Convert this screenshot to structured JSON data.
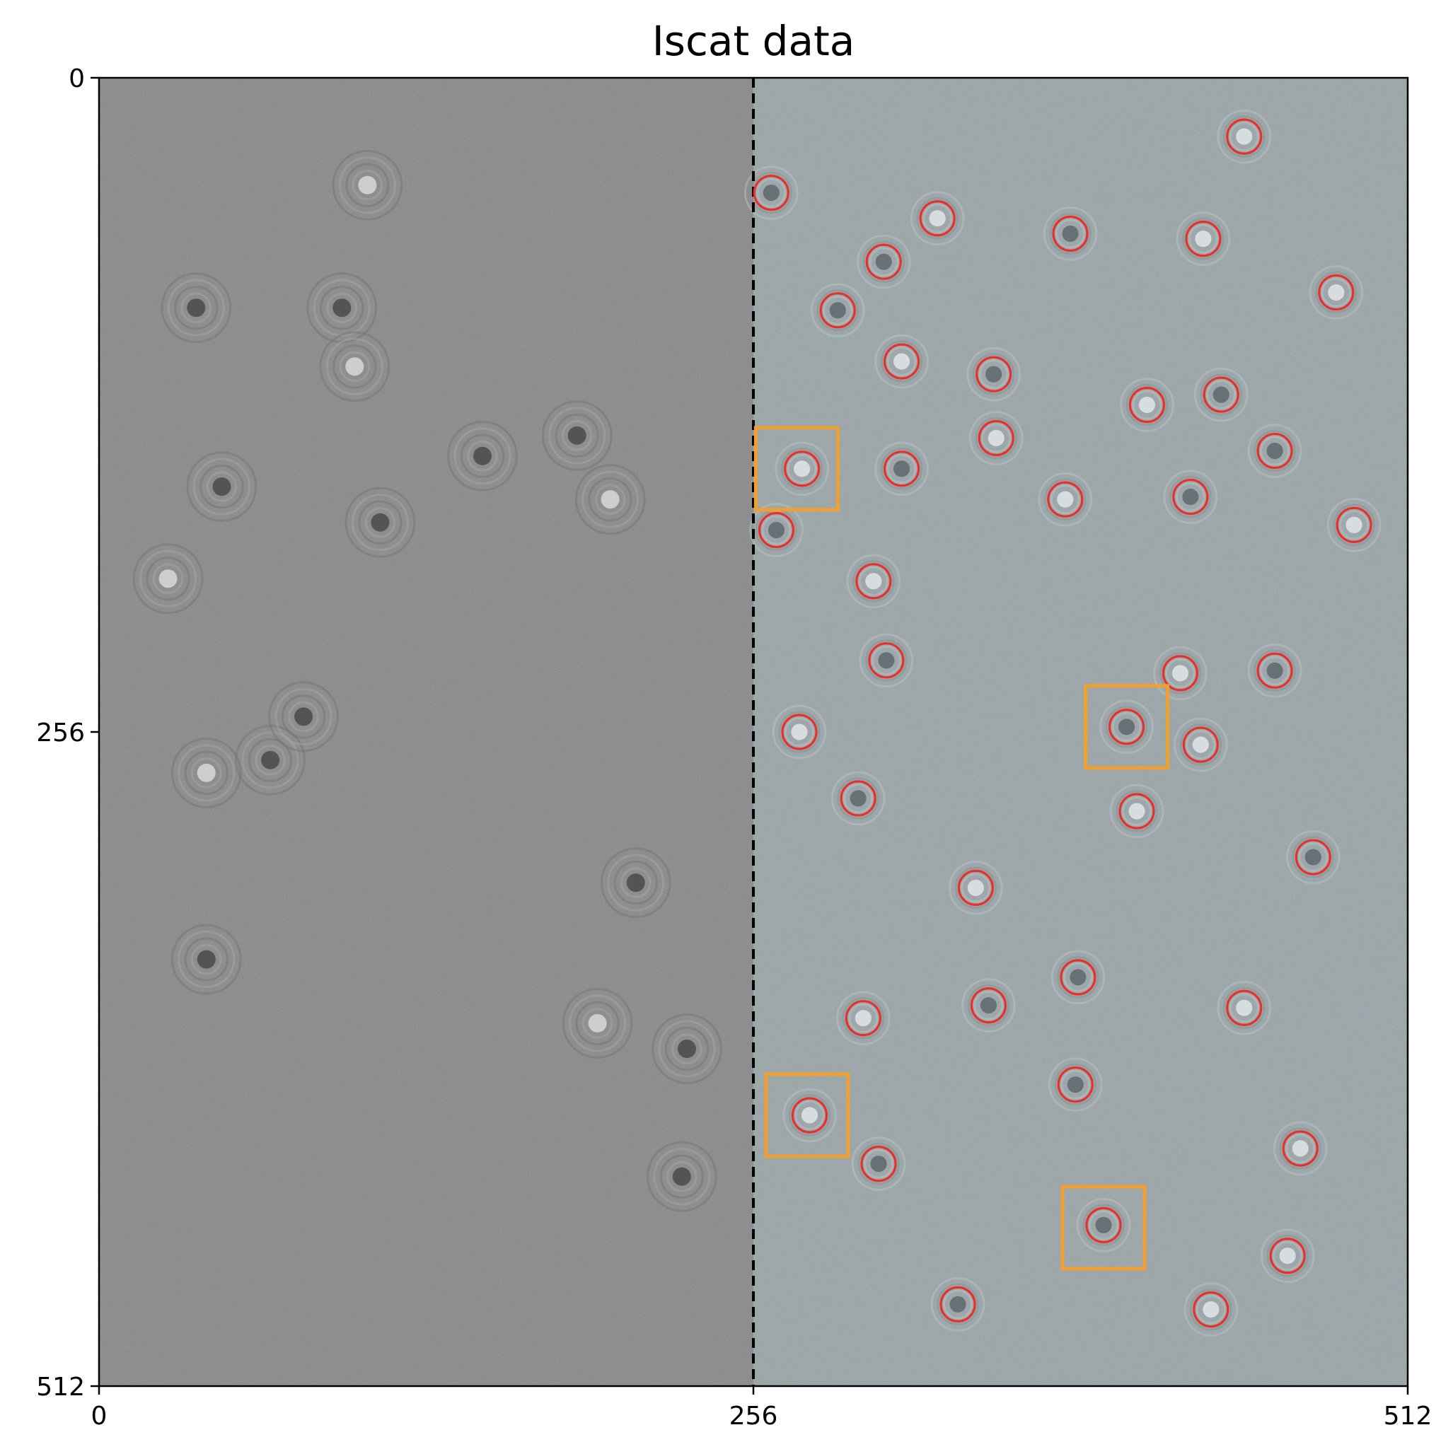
{
  "figure": {
    "title": "Iscat data",
    "x_ticks": [
      "0",
      "256",
      "512"
    ],
    "y_ticks": [
      "0",
      "256",
      "512"
    ]
  },
  "image": {
    "size": [
      512,
      512
    ],
    "split_x": 256,
    "left_tint": "#858585",
    "right_tint": "#97a3a7",
    "dark_particles_left": [
      [
        105,
        42
      ],
      [
        38,
        90
      ],
      [
        95,
        90
      ],
      [
        100,
        113
      ],
      [
        150,
        148
      ],
      [
        187,
        140
      ],
      [
        200,
        165
      ],
      [
        48,
        160
      ],
      [
        110,
        174
      ],
      [
        27,
        196
      ],
      [
        67,
        267
      ],
      [
        80,
        250
      ],
      [
        42,
        272
      ],
      [
        210,
        315
      ],
      [
        42,
        345
      ],
      [
        195,
        370
      ],
      [
        230,
        380
      ],
      [
        228,
        430
      ]
    ],
    "colors": {
      "detection_circle": "#e8302a",
      "highlight_box": "#f0a030",
      "split_line": "#000000"
    }
  },
  "detections": [
    [
      448,
      23
    ],
    [
      263,
      45
    ],
    [
      328,
      55
    ],
    [
      380,
      61
    ],
    [
      432,
      63
    ],
    [
      307,
      72
    ],
    [
      484,
      84
    ],
    [
      289,
      91
    ],
    [
      314,
      111
    ],
    [
      350,
      116
    ],
    [
      410,
      128
    ],
    [
      439,
      124
    ],
    [
      351,
      141
    ],
    [
      460,
      146
    ],
    [
      275,
      153
    ],
    [
      314,
      153
    ],
    [
      378,
      165
    ],
    [
      427,
      164
    ],
    [
      491,
      175
    ],
    [
      265,
      177
    ],
    [
      303,
      197
    ],
    [
      308,
      228
    ],
    [
      423,
      233
    ],
    [
      460,
      232
    ],
    [
      274,
      256
    ],
    [
      402,
      254
    ],
    [
      431,
      261
    ],
    [
      297,
      282
    ],
    [
      406,
      287
    ],
    [
      475,
      305
    ],
    [
      343,
      317
    ],
    [
      383,
      352
    ],
    [
      299,
      368
    ],
    [
      348,
      363
    ],
    [
      448,
      364
    ],
    [
      382,
      394
    ],
    [
      278,
      406
    ],
    [
      305,
      425
    ],
    [
      470,
      419
    ],
    [
      393,
      449
    ],
    [
      465,
      461
    ],
    [
      336,
      480
    ],
    [
      435,
      482
    ]
  ],
  "highlight_boxes": [
    [
      273,
      153
    ],
    [
      402,
      254
    ],
    [
      277,
      406
    ],
    [
      393,
      450
    ]
  ]
}
